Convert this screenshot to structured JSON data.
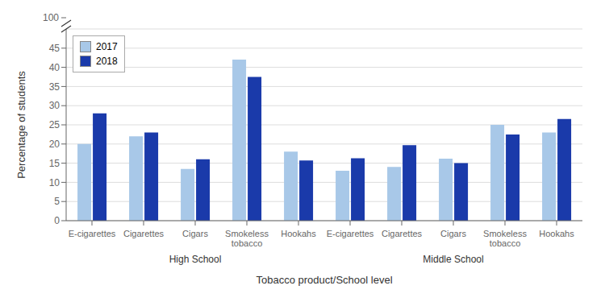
{
  "chart_data": {
    "type": "bar",
    "categories": [
      "E-cigarettes",
      "Cigarettes",
      "Cigars",
      "Smokeless\ntobacco",
      "Hookahs",
      "E-cigarettes",
      "Cigarettes",
      "Cigars",
      "Smokeless\ntobacco",
      "Hookahs"
    ],
    "series": [
      {
        "name": "2017",
        "color": "#a8c8e8",
        "values": [
          20.0,
          22.0,
          13.5,
          42.0,
          18.0,
          13.0,
          14.0,
          16.2,
          25.0,
          23.0
        ]
      },
      {
        "name": "2018",
        "color": "#1a3aaa",
        "values": [
          28.0,
          23.0,
          16.0,
          37.5,
          15.7,
          16.3,
          19.7,
          15.0,
          22.5,
          26.5
        ]
      }
    ],
    "xlabel": "Tobacco product/School level",
    "ylabel": "Percentage of students",
    "group_labels": [
      "High School",
      "Middle School"
    ],
    "annotations": [
      "100"
    ],
    "ylim": [
      0,
      50
    ],
    "yticks": [
      0,
      5,
      10,
      15,
      20,
      25,
      30,
      35,
      40,
      45
    ],
    "grid": true,
    "legend": "upper left"
  }
}
